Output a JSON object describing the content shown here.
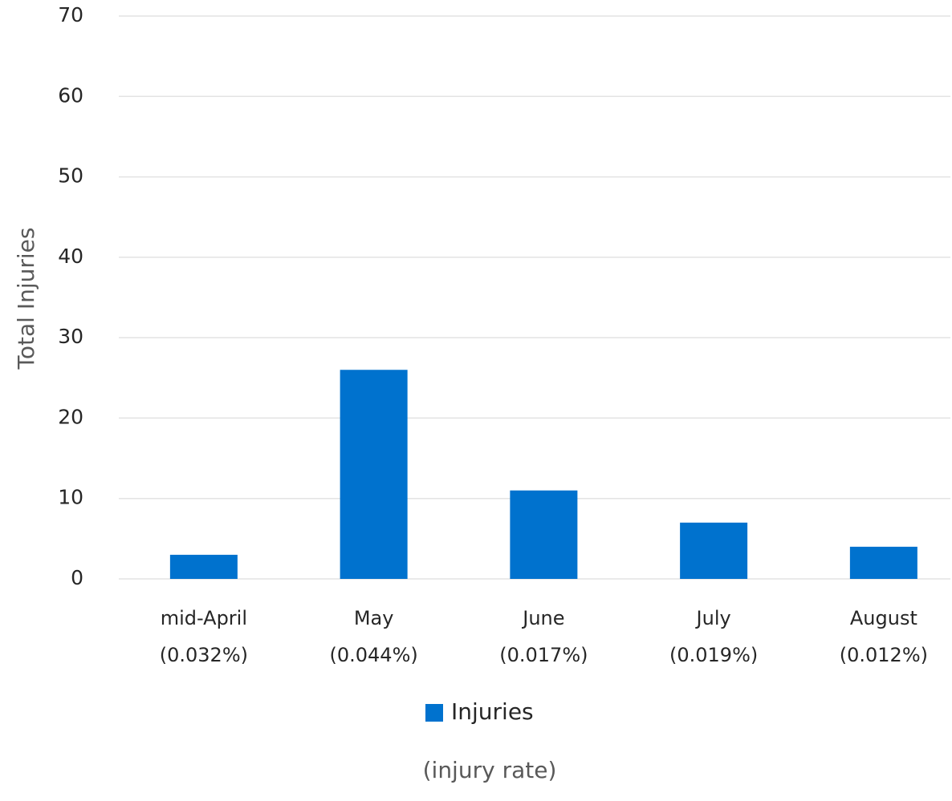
{
  "chart_data": {
    "type": "bar",
    "x_label": "(injury rate)",
    "y_label": "Total Injuries",
    "categories": [
      [
        "mid-April",
        "(0.032%)"
      ],
      [
        "May",
        "(0.044%)"
      ],
      [
        "June",
        "(0.017%)"
      ],
      [
        "July",
        "(0.019%)"
      ],
      [
        "August",
        "(0.012%)"
      ]
    ],
    "series": [
      {
        "name": "Injuries",
        "color": "#0072ce",
        "values": [
          3,
          26,
          11,
          7,
          4
        ]
      }
    ],
    "ylim": [
      0,
      70
    ],
    "yticks": [
      0,
      10,
      20,
      30,
      40,
      50,
      60,
      70
    ],
    "grid": true,
    "legend": "bottom"
  }
}
